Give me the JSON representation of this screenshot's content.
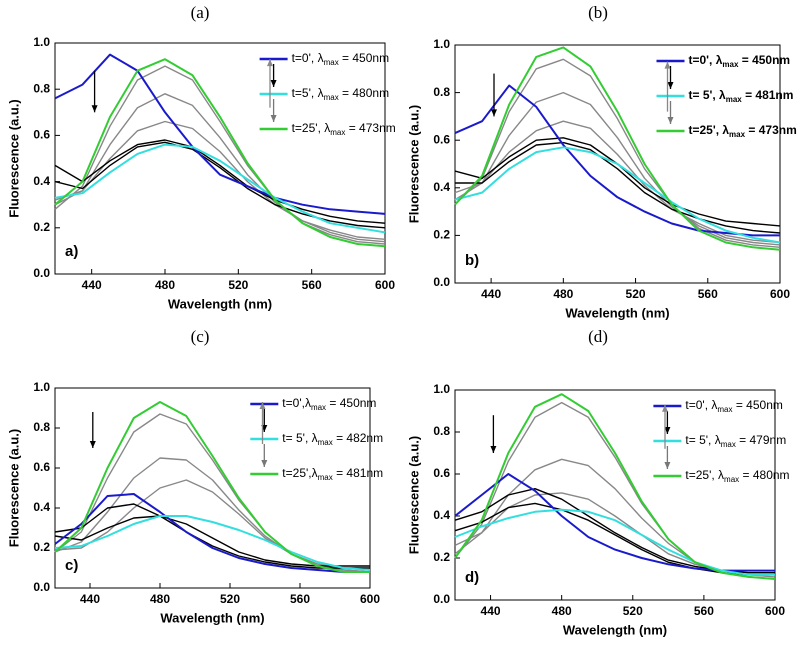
{
  "chart_data": [
    {
      "type": "line",
      "title": "(a)",
      "panel_label": "a)",
      "x_label": "Wavelength (nm)",
      "y_label": "Fluorescence (a.u.)",
      "legend_bold": false,
      "x": [
        420,
        435,
        450,
        465,
        480,
        495,
        510,
        525,
        540,
        555,
        570,
        585,
        600
      ],
      "xlim": [
        420,
        600
      ],
      "xticks": [
        440,
        480,
        520,
        560,
        600
      ],
      "ylim": [
        0,
        1
      ],
      "yticks": [
        {
          "value": 0,
          "label": "0.0"
        },
        0.2,
        0.4,
        0.6,
        0.8,
        {
          "value": 1,
          "label": "1.0"
        }
      ],
      "series": [
        {
          "color": "#888888",
          "values": [
            0.28,
            0.38,
            0.64,
            0.84,
            0.9,
            0.84,
            0.66,
            0.47,
            0.32,
            0.22,
            0.17,
            0.14,
            0.13
          ]
        },
        {
          "color": "#888888",
          "values": [
            0.3,
            0.36,
            0.56,
            0.72,
            0.78,
            0.73,
            0.59,
            0.43,
            0.31,
            0.23,
            0.18,
            0.15,
            0.14
          ]
        },
        {
          "color": "#888888",
          "values": [
            0.32,
            0.36,
            0.5,
            0.62,
            0.66,
            0.63,
            0.53,
            0.4,
            0.3,
            0.23,
            0.19,
            0.16,
            0.15
          ]
        },
        {
          "color": "#000000",
          "values": [
            0.47,
            0.4,
            0.49,
            0.56,
            0.58,
            0.55,
            0.47,
            0.38,
            0.32,
            0.28,
            0.25,
            0.23,
            0.22
          ]
        },
        {
          "color": "#000000",
          "values": [
            0.4,
            0.37,
            0.47,
            0.55,
            0.57,
            0.54,
            0.46,
            0.37,
            0.3,
            0.26,
            0.23,
            0.21,
            0.2
          ]
        },
        {
          "name": "t=0', λmax = 450nm",
          "color": "#1a1acc",
          "values": [
            0.76,
            0.82,
            0.95,
            0.88,
            0.7,
            0.55,
            0.43,
            0.38,
            0.33,
            0.3,
            0.28,
            0.27,
            0.26
          ]
        },
        {
          "name": "t=5', λmax = 480nm",
          "color": "#33dede",
          "values": [
            0.33,
            0.35,
            0.44,
            0.52,
            0.56,
            0.55,
            0.49,
            0.41,
            0.33,
            0.27,
            0.22,
            0.2,
            0.18
          ]
        },
        {
          "name": "t=25', λmax = 473nm",
          "color": "#33cc33",
          "values": [
            0.3,
            0.4,
            0.68,
            0.88,
            0.93,
            0.86,
            0.68,
            0.48,
            0.32,
            0.22,
            0.16,
            0.13,
            0.12
          ]
        }
      ]
    },
    {
      "type": "line",
      "title": "(b)",
      "panel_label": "b)",
      "x_label": "Wavelength (nm)",
      "y_label": "Fluorescence (a.u.)",
      "legend_bold": true,
      "x": [
        420,
        435,
        450,
        465,
        480,
        495,
        510,
        525,
        540,
        555,
        570,
        585,
        600
      ],
      "xlim": [
        420,
        600
      ],
      "xticks": [
        440,
        480,
        520,
        560,
        600
      ],
      "ylim": [
        0,
        1
      ],
      "yticks": [
        {
          "value": 0,
          "label": "0.0"
        },
        0.2,
        0.4,
        0.6,
        0.8,
        {
          "value": 1,
          "label": "1.0"
        }
      ],
      "series": [
        {
          "color": "#888888",
          "values": [
            0.33,
            0.44,
            0.72,
            0.9,
            0.94,
            0.87,
            0.69,
            0.48,
            0.33,
            0.23,
            0.18,
            0.16,
            0.15
          ]
        },
        {
          "color": "#888888",
          "values": [
            0.35,
            0.42,
            0.62,
            0.76,
            0.8,
            0.75,
            0.61,
            0.44,
            0.32,
            0.24,
            0.19,
            0.17,
            0.16
          ]
        },
        {
          "color": "#888888",
          "values": [
            0.38,
            0.42,
            0.55,
            0.64,
            0.68,
            0.65,
            0.54,
            0.41,
            0.31,
            0.25,
            0.2,
            0.18,
            0.17
          ]
        },
        {
          "color": "#000000",
          "values": [
            0.47,
            0.44,
            0.53,
            0.6,
            0.61,
            0.58,
            0.5,
            0.4,
            0.33,
            0.29,
            0.26,
            0.25,
            0.24
          ]
        },
        {
          "color": "#000000",
          "values": [
            0.42,
            0.42,
            0.51,
            0.58,
            0.59,
            0.56,
            0.48,
            0.38,
            0.31,
            0.27,
            0.24,
            0.22,
            0.21
          ]
        },
        {
          "name": "t=0', λmax = 450nm",
          "color": "#1a1acc",
          "values": [
            0.63,
            0.68,
            0.83,
            0.74,
            0.58,
            0.45,
            0.36,
            0.3,
            0.25,
            0.22,
            0.21,
            0.2,
            0.2
          ]
        },
        {
          "name": "t= 5', λmax = 481nm",
          "color": "#33dede",
          "values": [
            0.35,
            0.38,
            0.48,
            0.55,
            0.57,
            0.55,
            0.5,
            0.42,
            0.34,
            0.27,
            0.22,
            0.19,
            0.17
          ]
        },
        {
          "name": "t=25', λmax = 473nm",
          "color": "#33cc33",
          "values": [
            0.33,
            0.45,
            0.75,
            0.95,
            0.99,
            0.91,
            0.72,
            0.5,
            0.33,
            0.22,
            0.17,
            0.15,
            0.14
          ]
        }
      ]
    },
    {
      "type": "line",
      "title": "(c)",
      "panel_label": "c)",
      "x_label": "Wavelength (nm)",
      "y_label": "Fluorescence (a.u.)",
      "legend_bold": false,
      "x": [
        420,
        435,
        450,
        465,
        480,
        495,
        510,
        525,
        540,
        555,
        570,
        585,
        600
      ],
      "xlim": [
        420,
        600
      ],
      "xticks": [
        440,
        480,
        520,
        560,
        600
      ],
      "ylim": [
        0,
        1
      ],
      "yticks": [
        {
          "value": 0,
          "label": "0.0"
        },
        0.2,
        0.4,
        0.6,
        0.8,
        {
          "value": 1,
          "label": "1.0"
        }
      ],
      "series": [
        {
          "color": "#888888",
          "values": [
            0.18,
            0.28,
            0.55,
            0.78,
            0.87,
            0.82,
            0.64,
            0.44,
            0.28,
            0.17,
            0.11,
            0.09,
            0.08
          ]
        },
        {
          "color": "#888888",
          "values": [
            0.18,
            0.23,
            0.38,
            0.55,
            0.65,
            0.64,
            0.54,
            0.39,
            0.26,
            0.17,
            0.12,
            0.09,
            0.08
          ]
        },
        {
          "color": "#888888",
          "values": [
            0.19,
            0.2,
            0.28,
            0.4,
            0.5,
            0.54,
            0.48,
            0.37,
            0.25,
            0.17,
            0.12,
            0.1,
            0.09
          ]
        },
        {
          "color": "#000000",
          "values": [
            0.28,
            0.3,
            0.4,
            0.42,
            0.36,
            0.28,
            0.21,
            0.16,
            0.13,
            0.11,
            0.1,
            0.1,
            0.1
          ]
        },
        {
          "color": "#000000",
          "values": [
            0.26,
            0.24,
            0.3,
            0.35,
            0.36,
            0.32,
            0.25,
            0.18,
            0.14,
            0.12,
            0.11,
            0.11,
            0.11
          ]
        },
        {
          "name": "t=0',λmax = 450nm",
          "color": "#1a1acc",
          "values": [
            0.22,
            0.32,
            0.46,
            0.47,
            0.38,
            0.28,
            0.2,
            0.15,
            0.12,
            0.1,
            0.09,
            0.08,
            0.08
          ]
        },
        {
          "name": "t= 5', λmax = 482nm",
          "color": "#33dede",
          "values": [
            0.2,
            0.21,
            0.26,
            0.32,
            0.36,
            0.36,
            0.33,
            0.29,
            0.24,
            0.18,
            0.13,
            0.1,
            0.09
          ]
        },
        {
          "name": "t=25',λmax = 481nm",
          "color": "#33cc33",
          "values": [
            0.18,
            0.3,
            0.6,
            0.85,
            0.93,
            0.86,
            0.66,
            0.45,
            0.28,
            0.17,
            0.11,
            0.08,
            0.08
          ]
        }
      ]
    },
    {
      "type": "line",
      "title": "(d)",
      "panel_label": "d)",
      "x_label": "Wavelength (nm)",
      "y_label": "Fluorescence (a.u.)",
      "legend_bold": false,
      "x": [
        420,
        435,
        450,
        465,
        480,
        495,
        510,
        525,
        540,
        555,
        570,
        585,
        600
      ],
      "xlim": [
        420,
        600
      ],
      "xticks": [
        440,
        480,
        520,
        560,
        600
      ],
      "ylim": [
        0,
        1
      ],
      "yticks": [
        {
          "value": 0,
          "label": "0.0"
        },
        0.2,
        0.4,
        0.6,
        0.8,
        {
          "value": 1,
          "label": "1.0"
        }
      ],
      "series": [
        {
          "color": "#888888",
          "values": [
            0.2,
            0.36,
            0.66,
            0.87,
            0.94,
            0.87,
            0.68,
            0.46,
            0.29,
            0.18,
            0.13,
            0.11,
            0.1
          ]
        },
        {
          "color": "#888888",
          "values": [
            0.22,
            0.32,
            0.5,
            0.62,
            0.67,
            0.64,
            0.53,
            0.39,
            0.27,
            0.18,
            0.14,
            0.12,
            0.11
          ]
        },
        {
          "color": "#888888",
          "values": [
            0.26,
            0.32,
            0.44,
            0.5,
            0.51,
            0.48,
            0.4,
            0.31,
            0.22,
            0.17,
            0.14,
            0.12,
            0.12
          ]
        },
        {
          "color": "#000000",
          "values": [
            0.38,
            0.42,
            0.5,
            0.53,
            0.48,
            0.4,
            0.32,
            0.25,
            0.19,
            0.16,
            0.14,
            0.13,
            0.13
          ]
        },
        {
          "color": "#000000",
          "values": [
            0.33,
            0.37,
            0.44,
            0.46,
            0.43,
            0.38,
            0.31,
            0.24,
            0.18,
            0.15,
            0.13,
            0.12,
            0.12
          ]
        },
        {
          "name": "t=0', λmax = 450nm",
          "color": "#1a1acc",
          "values": [
            0.4,
            0.5,
            0.6,
            0.52,
            0.4,
            0.3,
            0.24,
            0.2,
            0.17,
            0.15,
            0.14,
            0.14,
            0.14
          ]
        },
        {
          "name": "t= 5', λmax = 479nm",
          "color": "#33dede",
          "values": [
            0.3,
            0.35,
            0.39,
            0.42,
            0.43,
            0.42,
            0.38,
            0.31,
            0.24,
            0.18,
            0.14,
            0.12,
            0.12
          ]
        },
        {
          "name": "t=25', λmax = 480nm",
          "color": "#33cc33",
          "values": [
            0.2,
            0.38,
            0.7,
            0.92,
            0.98,
            0.9,
            0.7,
            0.47,
            0.29,
            0.18,
            0.13,
            0.11,
            0.1
          ]
        }
      ]
    }
  ]
}
